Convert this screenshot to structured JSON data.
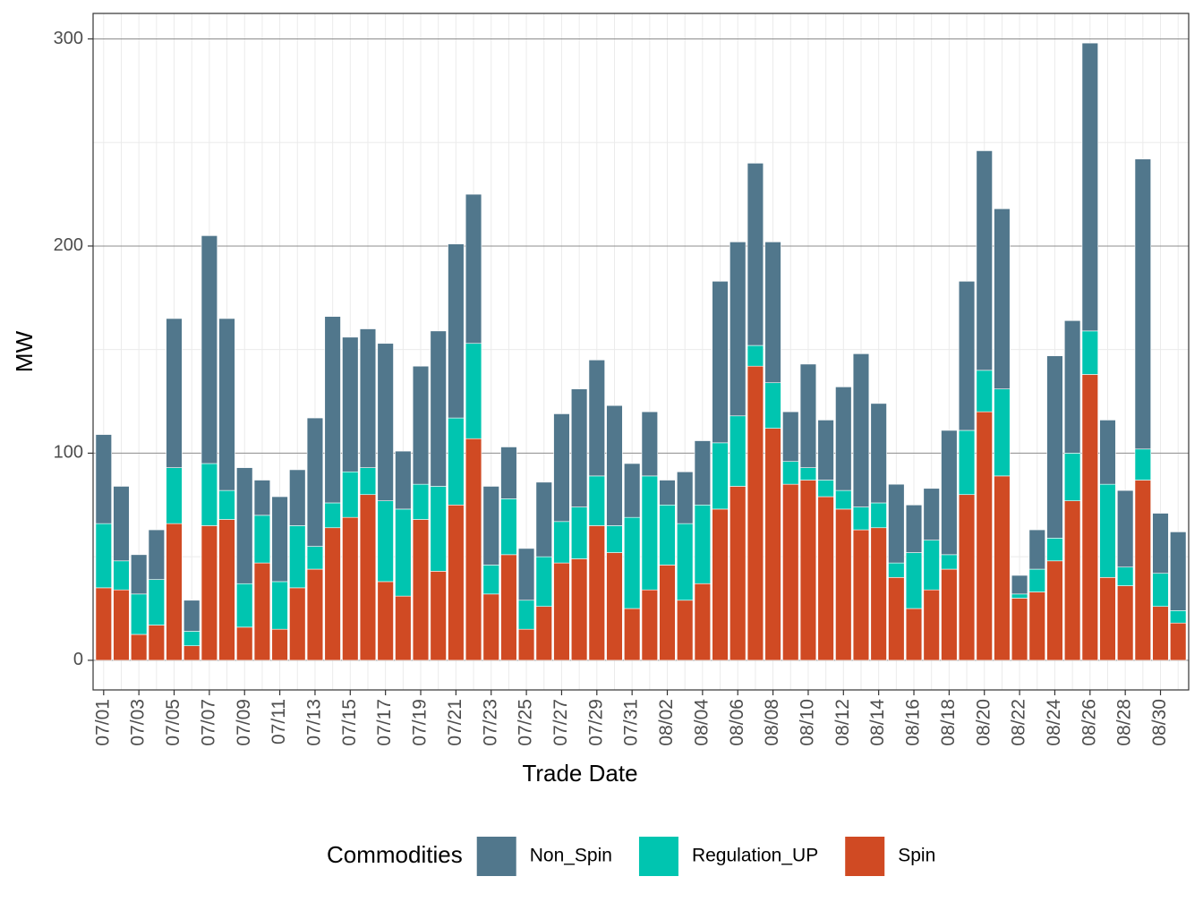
{
  "chart_data": {
    "type": "stacked_bar",
    "x_label": "Trade Date",
    "y_label": "MW",
    "legend_title": "Commodities",
    "legend_position": "bottom",
    "grid": true,
    "categories": [
      "07/01",
      null,
      "07/03",
      null,
      "07/05",
      null,
      "07/07",
      null,
      "07/09",
      null,
      "07/11",
      null,
      "07/13",
      null,
      "07/15",
      null,
      "07/17",
      null,
      "07/19",
      null,
      "07/21",
      null,
      "07/23",
      null,
      "07/25",
      null,
      "07/27",
      null,
      "07/29",
      null,
      "07/31",
      null,
      "08/02",
      null,
      "08/04",
      null,
      "08/06",
      null,
      "08/08",
      null,
      "08/10",
      null,
      "08/12",
      null,
      "08/14",
      null,
      "08/16",
      null,
      "08/18",
      null,
      "08/20",
      null,
      "08/22",
      null,
      "08/24",
      null,
      "08/26",
      null,
      "08/28",
      null,
      "08/30",
      null
    ],
    "ylim": [
      -14.3,
      312.3
    ],
    "yticks": [
      0,
      100,
      200,
      300
    ],
    "series": [
      {
        "name": "Non_Spin",
        "color": "#51778c",
        "values": [
          43,
          36,
          19,
          24,
          72,
          15,
          110,
          83,
          56,
          17,
          41,
          27,
          62,
          90,
          65,
          67,
          76,
          28,
          57,
          75,
          84,
          72,
          38,
          25,
          25,
          36,
          52,
          57,
          56,
          58,
          26,
          31,
          12,
          25,
          31,
          78,
          84,
          88,
          68,
          24,
          50,
          29,
          50,
          74,
          48,
          38,
          23,
          25,
          60,
          72,
          106,
          87,
          9,
          19,
          88,
          64,
          139,
          31,
          37,
          140,
          29,
          38
        ]
      },
      {
        "name": "Regulation_UP",
        "color": "#00c5b0",
        "values": [
          31,
          14,
          19.5,
          22,
          27,
          7,
          30,
          14,
          21,
          23,
          23,
          30,
          11,
          12,
          22,
          13,
          39,
          42,
          17,
          41,
          42,
          46,
          14,
          27,
          14,
          24,
          20,
          25,
          24,
          13,
          44,
          55,
          29,
          37,
          38,
          32,
          34,
          10,
          22,
          11,
          6,
          8,
          9,
          11,
          12,
          7,
          27,
          24,
          7,
          31,
          20,
          42,
          2,
          11,
          11,
          23,
          21,
          45,
          9,
          15,
          16,
          6
        ]
      },
      {
        "name": "Spin",
        "color": "#d04a23",
        "values": [
          35,
          34,
          12.5,
          17,
          66,
          7,
          65,
          68,
          16,
          47,
          15,
          35,
          44,
          64,
          69,
          80,
          38,
          31,
          68,
          43,
          75,
          107,
          32,
          51,
          15,
          26,
          47,
          49,
          65,
          52,
          25,
          34,
          46,
          29,
          37,
          73,
          84,
          142,
          112,
          85,
          87,
          79,
          73,
          63,
          64,
          40,
          25,
          34,
          44,
          80,
          120,
          89,
          30,
          33,
          48,
          77,
          138,
          40,
          36,
          87,
          26,
          18
        ]
      }
    ]
  }
}
